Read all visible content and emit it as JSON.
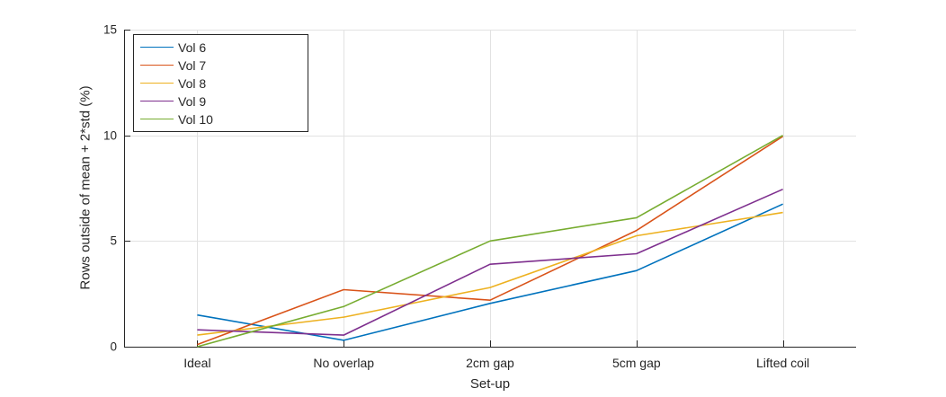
{
  "figure": {
    "background": "#ffffff",
    "axis_color": "#262626",
    "grid_color": "#e2e2e2"
  },
  "chart_data": {
    "type": "line",
    "title": "",
    "xlabel": "Set-up",
    "ylabel": "Rows outside of mean + 2*std (%)",
    "categories": [
      "Ideal",
      "No overlap",
      "2cm gap",
      "5cm gap",
      "Lifted coil"
    ],
    "series": [
      {
        "name": "Vol 6",
        "color": "#0072BD",
        "values": [
          1.5,
          0.3,
          2.05,
          3.6,
          6.75
        ]
      },
      {
        "name": "Vol 7",
        "color": "#D95319",
        "values": [
          0.1,
          2.7,
          2.2,
          5.5,
          9.95
        ]
      },
      {
        "name": "Vol 8",
        "color": "#EDB120",
        "values": [
          0.55,
          1.4,
          2.8,
          5.25,
          6.35
        ]
      },
      {
        "name": "Vol 9",
        "color": "#7E2F8E",
        "values": [
          0.8,
          0.55,
          3.9,
          4.4,
          7.45
        ]
      },
      {
        "name": "Vol 10",
        "color": "#77AC30",
        "values": [
          0.0,
          1.9,
          5.0,
          6.1,
          10.0
        ]
      }
    ],
    "ylim": [
      0,
      15
    ],
    "yticks": [
      0,
      5,
      10,
      15
    ],
    "y_tick_labels": [
      "0",
      "5",
      "10",
      "15"
    ],
    "grid": true,
    "legend_position": "top-left"
  }
}
